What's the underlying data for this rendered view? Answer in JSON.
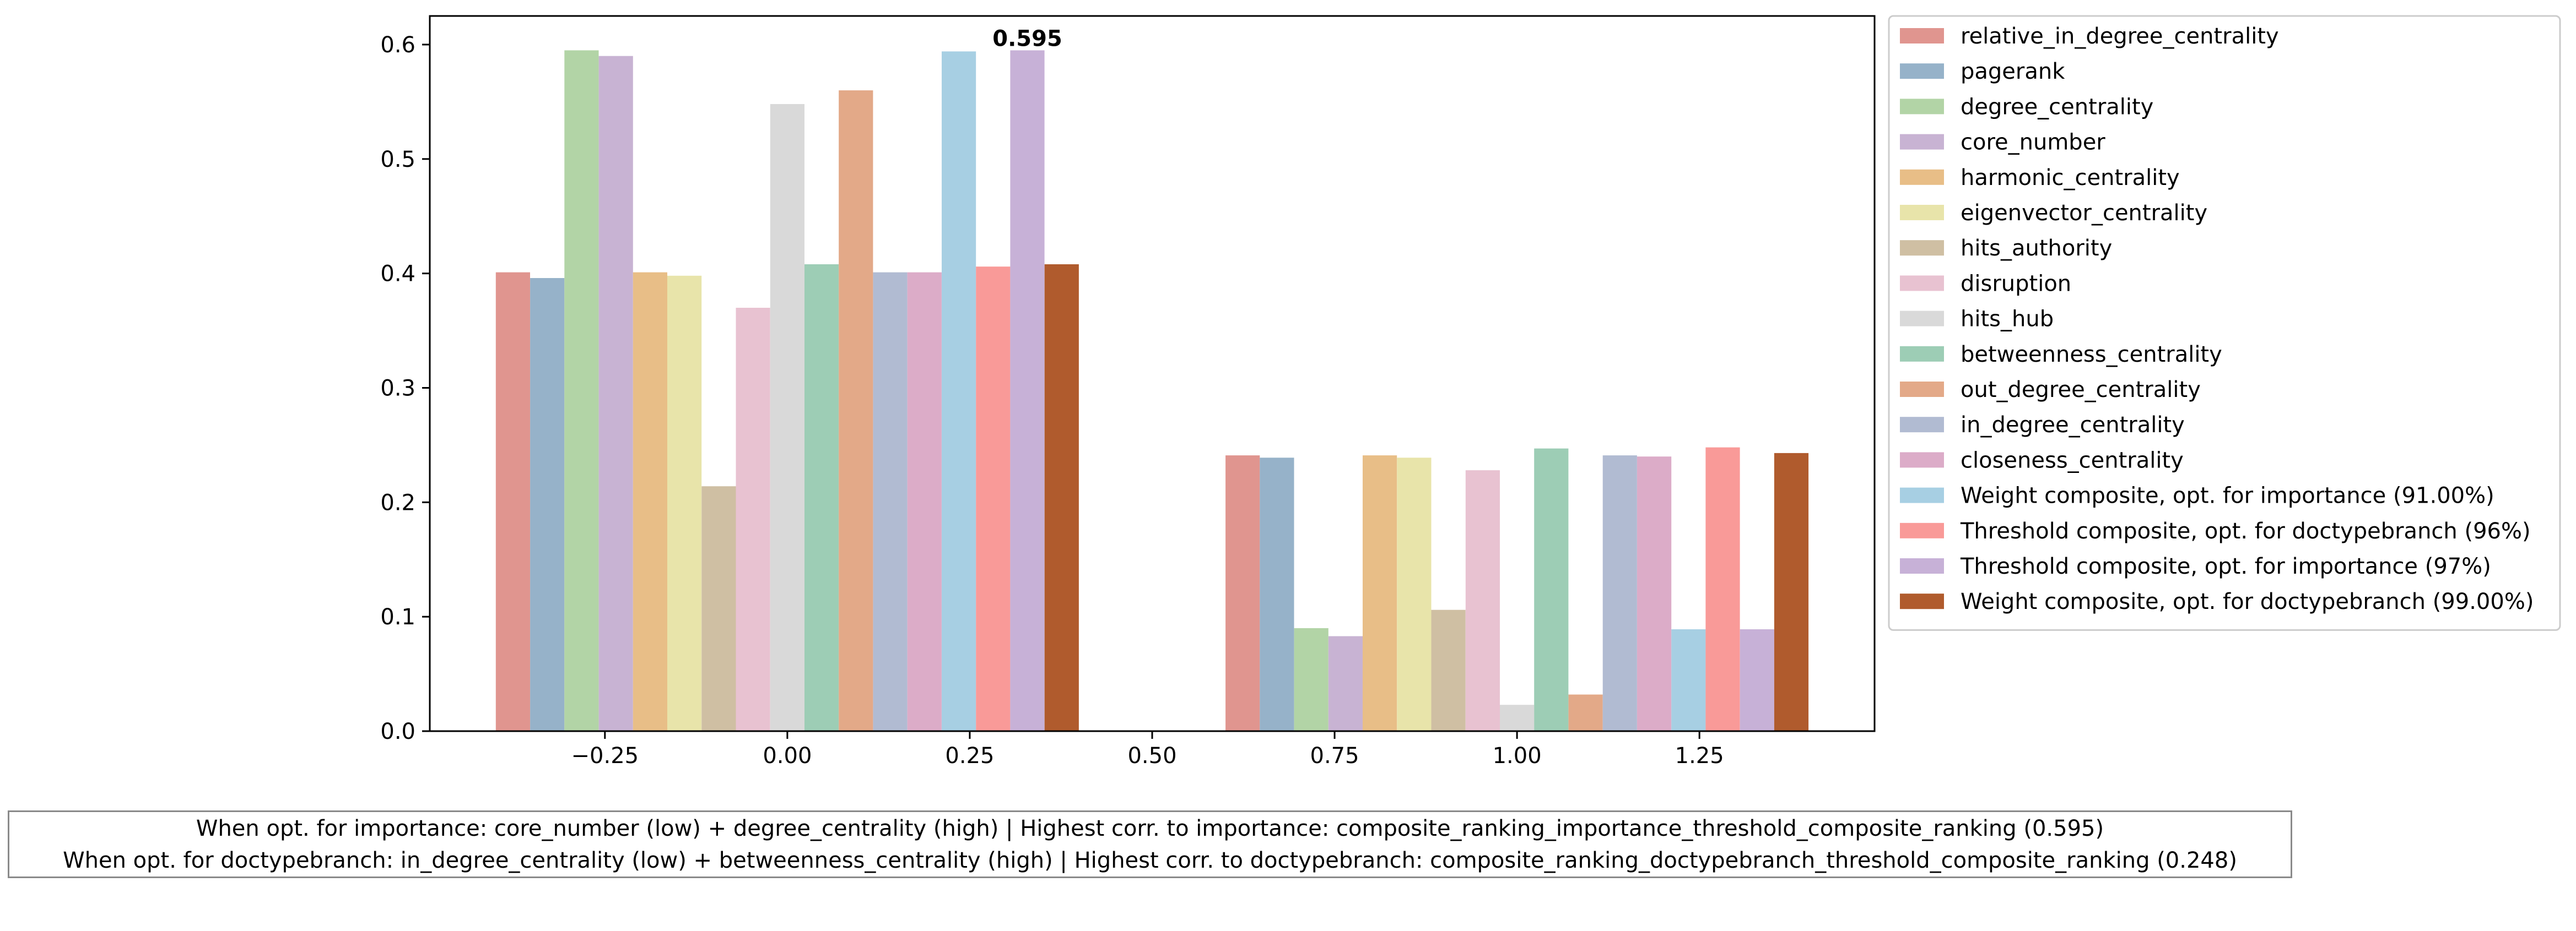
{
  "chart_data": {
    "type": "bar",
    "x": [
      0,
      1
    ],
    "xlim": [
      -0.49,
      1.49
    ],
    "ylim": [
      0,
      0.625
    ],
    "xticks": [
      "−0.25",
      "0.00",
      "0.25",
      "0.50",
      "0.75",
      "1.00",
      "1.25"
    ],
    "xtick_values": [
      -0.25,
      0.0,
      0.25,
      0.5,
      0.75,
      1.0,
      1.25
    ],
    "yticks": [
      "0.0",
      "0.1",
      "0.2",
      "0.3",
      "0.4",
      "0.5",
      "0.6"
    ],
    "ytick_values": [
      0.0,
      0.1,
      0.2,
      0.3,
      0.4,
      0.5,
      0.6
    ],
    "grid": false,
    "legend_position": "outside-right",
    "bar_width": 0.047,
    "series": [
      {
        "name": "relative_in_degree_centrality",
        "color": "#e0958f",
        "values": [
          0.401,
          0.241
        ]
      },
      {
        "name": "pagerank",
        "color": "#96b2c9",
        "values": [
          0.396,
          0.239
        ]
      },
      {
        "name": "degree_centrality",
        "color": "#b2d4a6",
        "values": [
          0.595,
          0.09
        ]
      },
      {
        "name": "core_number",
        "color": "#c8b3d3",
        "values": [
          0.59,
          0.083
        ]
      },
      {
        "name": "harmonic_centrality",
        "color": "#e8be87",
        "values": [
          0.401,
          0.241
        ]
      },
      {
        "name": "eigenvector_centrality",
        "color": "#e8e4aa",
        "values": [
          0.398,
          0.239
        ]
      },
      {
        "name": "hits_authority",
        "color": "#cfbfa3",
        "values": [
          0.214,
          0.106
        ]
      },
      {
        "name": "disruption",
        "color": "#e8c2d1",
        "values": [
          0.37,
          0.228
        ]
      },
      {
        "name": "hits_hub",
        "color": "#d9d9d9",
        "values": [
          0.548,
          0.023
        ]
      },
      {
        "name": "betweenness_centrality",
        "color": "#9dcdb5",
        "values": [
          0.408,
          0.247
        ]
      },
      {
        "name": "out_degree_centrality",
        "color": "#e3a988",
        "values": [
          0.56,
          0.032
        ]
      },
      {
        "name": "in_degree_centrality",
        "color": "#b1bbd2",
        "values": [
          0.401,
          0.241
        ]
      },
      {
        "name": "closeness_centrality",
        "color": "#dcacc8",
        "values": [
          0.401,
          0.24
        ]
      },
      {
        "name": "Weight composite, opt. for importance (91.00%)",
        "color": "#a7cfe3",
        "values": [
          0.594,
          0.089
        ]
      },
      {
        "name": "Threshold composite, opt. for doctypebranch (96%)",
        "color": "#f99a98",
        "values": [
          0.406,
          0.248
        ]
      },
      {
        "name": "Threshold composite, opt. for importance (97%)",
        "color": "#c7b1d7",
        "values": [
          0.595,
          0.089
        ]
      },
      {
        "name": "Weight composite, opt. for doctypebranch (99.00%)",
        "color": "#b05b2d",
        "values": [
          0.408,
          0.243
        ]
      }
    ],
    "annotations": [
      {
        "text": "0.595",
        "series_index": 15,
        "group": 0
      }
    ]
  },
  "summary": {
    "line1": "When opt. for importance: core_number (low) + degree_centrality (high) | Highest corr. to importance: composite_ranking_importance_threshold_composite_ranking (0.595)",
    "line2": "When opt. for doctypebranch: in_degree_centrality (low) + betweenness_centrality (high) | Highest corr. to doctypebranch: composite_ranking_doctypebranch_threshold_composite_ranking (0.248)"
  }
}
